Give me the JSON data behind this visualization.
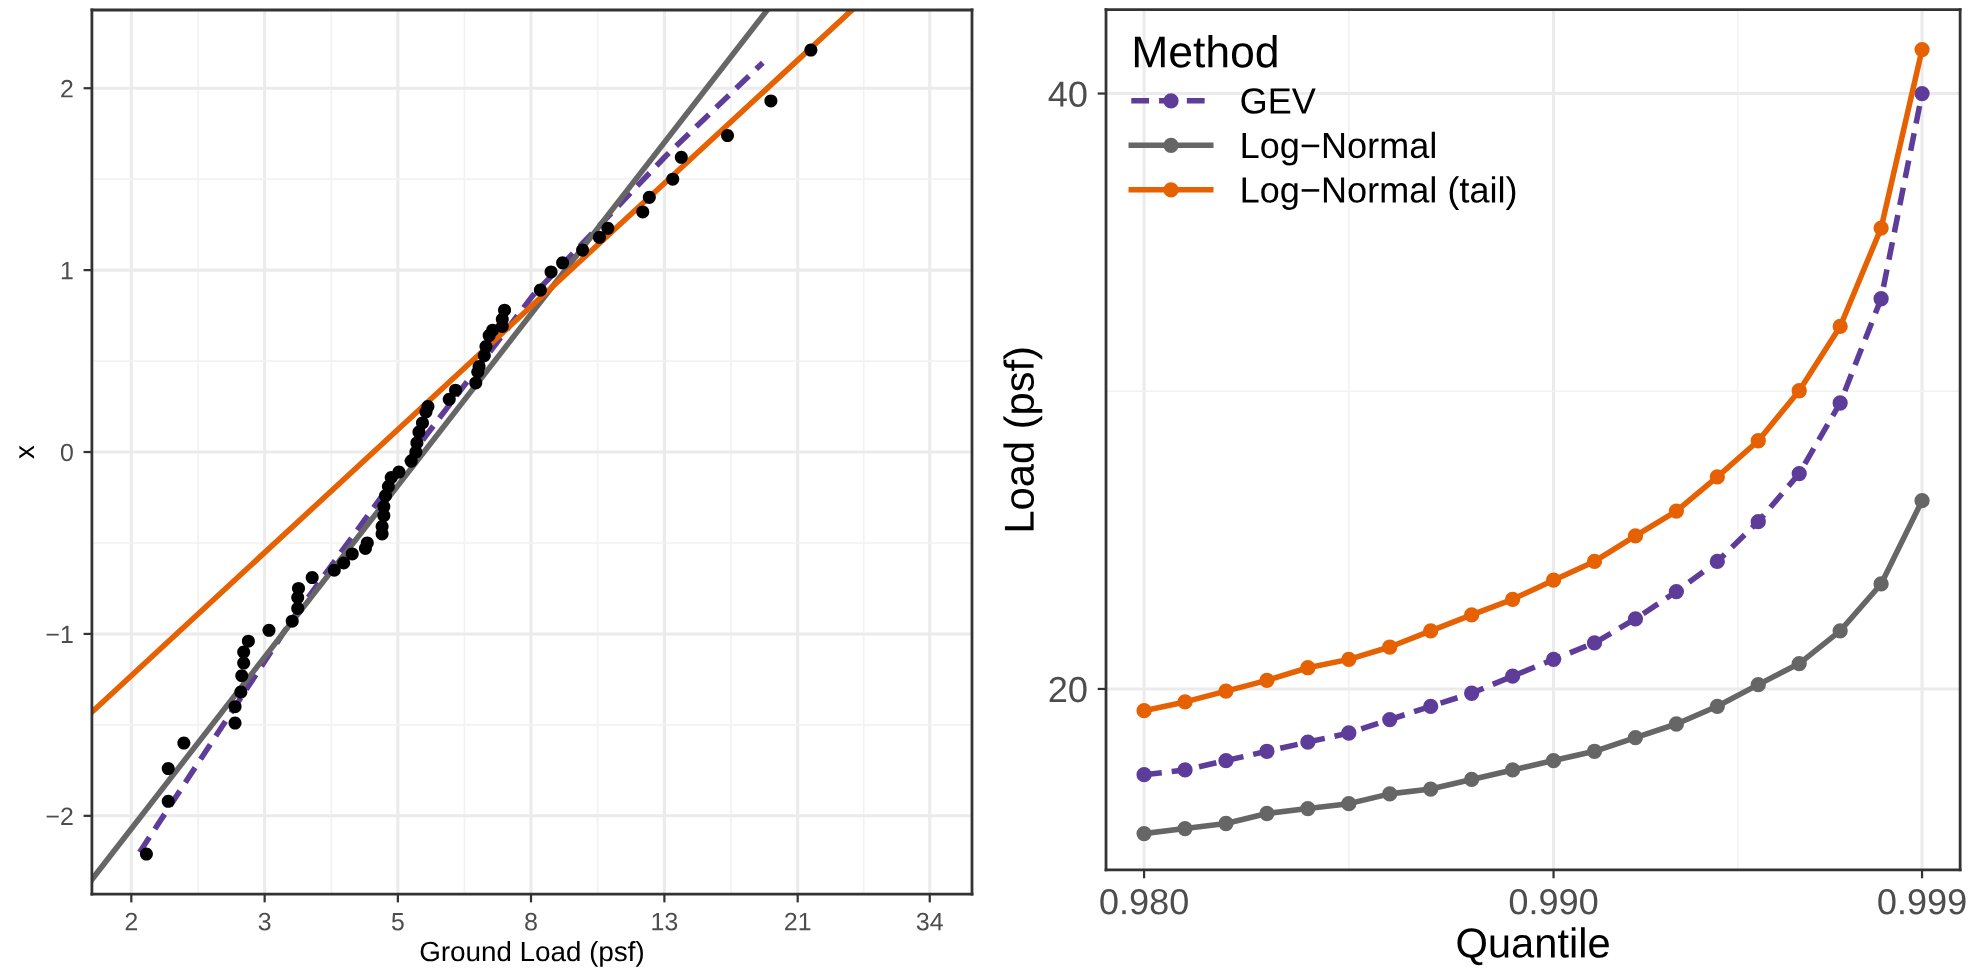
{
  "chart_data": [
    {
      "type": "scatter",
      "xlabel": "Ground Load (psf)",
      "ylabel": "x",
      "log": "x",
      "grid": true,
      "legend": false,
      "xlim": [
        1.739,
        39.5
      ],
      "ylim": [
        -2.43,
        2.43
      ],
      "xticks": [
        {
          "value": 2,
          "label": "2"
        },
        {
          "value": 3.21,
          "label": "3"
        },
        {
          "value": 5.15,
          "label": "5"
        },
        {
          "value": 8.26,
          "label": "8"
        },
        {
          "value": 13.26,
          "label": "13"
        },
        {
          "value": 21.28,
          "label": "21"
        },
        {
          "value": 34,
          "label": "34"
        }
      ],
      "yticks": [
        {
          "value": -2,
          "label": "−2"
        },
        {
          "value": -1,
          "label": "−1"
        },
        0,
        1,
        2
      ],
      "series": [
        {
          "type": "scatter",
          "marker": "circle",
          "color": "#000000",
          "x": [
            2.11,
            2.28,
            2.28,
            2.41,
            2.89,
            2.89,
            2.95,
            2.96,
            2.98,
            2.98,
            3.03,
            3.26,
            3.54,
            3.61,
            3.61,
            3.62,
            3.8,
            4.11,
            4.25,
            4.38,
            4.59,
            4.62,
            4.87,
            4.87,
            4.9,
            4.9,
            4.93,
            4.98,
            5.03,
            5.17,
            5.4,
            5.49,
            5.51,
            5.55,
            5.62,
            5.69,
            5.73,
            6.18,
            6.32,
            6.79,
            6.84,
            6.87,
            7.0,
            7.04,
            7.12,
            7.21,
            7.46,
            7.46,
            7.52,
            8.54,
            8.87,
            9.24,
            9.92,
            10.53,
            10.85,
            12.28,
            12.57,
            13.66,
            14.08,
            16.59,
            19.35,
            22.3
          ],
          "values": [
            -2.21,
            -1.92,
            -1.74,
            -1.6,
            -1.49,
            -1.4,
            -1.32,
            -1.23,
            -1.16,
            -1.1,
            -1.04,
            -0.98,
            -0.93,
            -0.86,
            -0.8,
            -0.75,
            -0.69,
            -0.65,
            -0.61,
            -0.56,
            -0.53,
            -0.5,
            -0.45,
            -0.41,
            -0.35,
            -0.3,
            -0.24,
            -0.19,
            -0.14,
            -0.11,
            -0.05,
            0,
            0.05,
            0.11,
            0.16,
            0.22,
            0.25,
            0.29,
            0.34,
            0.38,
            0.44,
            0.47,
            0.53,
            0.58,
            0.64,
            0.67,
            0.69,
            0.73,
            0.78,
            0.89,
            0.99,
            1.04,
            1.11,
            1.18,
            1.23,
            1.32,
            1.4,
            1.5,
            1.62,
            1.74,
            1.93,
            2.21
          ]
        },
        {
          "type": "line",
          "color": "#5e3c99",
          "line_style": "dashed",
          "x": [
            2.06,
            3.54,
            5.69,
            8.31,
            13.35,
            18.8
          ],
          "values": [
            -2.2,
            -0.92,
            0.09,
            0.86,
            1.63,
            2.14
          ]
        },
        {
          "type": "line",
          "color": "#666666",
          "line_style": "solid",
          "x": [
            1.739,
            19.1
          ],
          "values": [
            -2.35,
            2.43
          ]
        },
        {
          "type": "line",
          "color": "#e66101",
          "line_style": "solid",
          "x": [
            1.739,
            25.8
          ],
          "values": [
            -1.43,
            2.43
          ]
        }
      ]
    },
    {
      "type": "line",
      "xlabel": "Quantile",
      "ylabel": "Load (psf)",
      "legend_title": "Method",
      "legend": "top left",
      "log": "y",
      "grid": true,
      "marker": "circle",
      "xlim": [
        0.97907,
        0.99993
      ],
      "ylim": [
        16.2,
        44.1
      ],
      "xticks": [
        {
          "value": 0.98,
          "label": "0.980"
        },
        {
          "value": 0.99,
          "label": "0.990"
        },
        {
          "value": 0.999,
          "label": "0.999"
        }
      ],
      "yticks": [
        20,
        40
      ],
      "x": [
        0.98,
        0.981,
        0.982,
        0.983,
        0.984,
        0.985,
        0.986,
        0.987,
        0.988,
        0.989,
        0.99,
        0.991,
        0.992,
        0.993,
        0.994,
        0.995,
        0.996,
        0.997,
        0.998,
        0.999
      ],
      "series": [
        {
          "name": "GEV",
          "color": "#5e3c99",
          "line_style": "dashed",
          "values": [
            18.1,
            18.2,
            18.4,
            18.6,
            18.8,
            19.0,
            19.3,
            19.6,
            19.9,
            20.3,
            20.7,
            21.1,
            21.7,
            22.4,
            23.2,
            24.3,
            25.7,
            27.9,
            31.5,
            40.0
          ]
        },
        {
          "name": "Log−Normal",
          "color": "#666666",
          "line_style": "solid",
          "values": [
            16.9,
            17.0,
            17.1,
            17.3,
            17.4,
            17.5,
            17.7,
            17.8,
            18.0,
            18.2,
            18.4,
            18.6,
            18.9,
            19.2,
            19.6,
            20.1,
            20.6,
            21.4,
            22.6,
            24.9
          ]
        },
        {
          "name": "Log−Normal (tail)",
          "color": "#e66101",
          "line_style": "solid",
          "values": [
            19.5,
            19.7,
            19.95,
            20.2,
            20.5,
            20.7,
            21.0,
            21.4,
            21.8,
            22.2,
            22.7,
            23.2,
            23.9,
            24.6,
            25.6,
            26.7,
            28.3,
            30.5,
            34.2,
            42.1
          ]
        }
      ]
    }
  ]
}
